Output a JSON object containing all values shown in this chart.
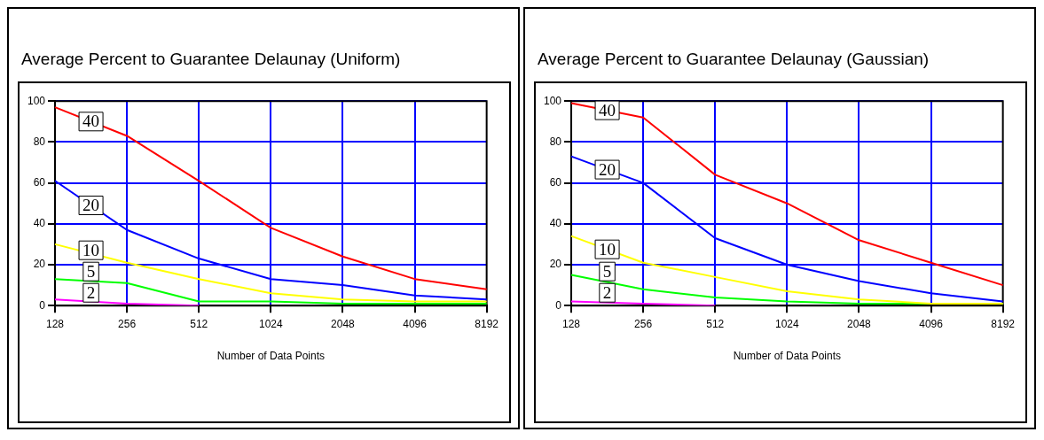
{
  "chart_data": [
    {
      "type": "line",
      "title": "Average Percent to Guarantee Delaunay (Uniform)",
      "xlabel": "Number of Data Points",
      "categories": [
        "128",
        "256",
        "512",
        "1024",
        "2048",
        "4096",
        "8192"
      ],
      "ylim": [
        0,
        100
      ],
      "yticks": [
        0,
        20,
        40,
        60,
        80,
        100
      ],
      "grid": true,
      "legend": false,
      "marker": "none",
      "line_style": "solid",
      "series": [
        {
          "name": "40",
          "color": "#ff0000",
          "values": [
            97,
            83,
            61,
            38,
            24,
            13,
            8
          ]
        },
        {
          "name": "20",
          "color": "#0000ff",
          "values": [
            61,
            37,
            23,
            13,
            10,
            5,
            3
          ]
        },
        {
          "name": "10",
          "color": "#ffff00",
          "values": [
            30,
            21,
            13,
            6,
            3,
            2,
            2
          ]
        },
        {
          "name": "5",
          "color": "#00ff00",
          "values": [
            13,
            11,
            2,
            2,
            1,
            1,
            1
          ]
        },
        {
          "name": "2",
          "color": "#ff00ff",
          "values": [
            3,
            1,
            0,
            null,
            null,
            null,
            null
          ]
        }
      ]
    },
    {
      "type": "line",
      "title": "Average Percent to Guarantee Delaunay (Gaussian)",
      "xlabel": "Number of Data Points",
      "categories": [
        "128",
        "256",
        "512",
        "1024",
        "2048",
        "4096",
        "8192"
      ],
      "ylim": [
        0,
        100
      ],
      "yticks": [
        0,
        20,
        40,
        60,
        80,
        100
      ],
      "grid": true,
      "legend": false,
      "marker": "none",
      "line_style": "solid",
      "series": [
        {
          "name": "40",
          "color": "#ff0000",
          "values": [
            99,
            92,
            64,
            50,
            32,
            21,
            10
          ]
        },
        {
          "name": "20",
          "color": "#0000ff",
          "values": [
            73,
            60,
            33,
            20,
            12,
            6,
            2
          ]
        },
        {
          "name": "10",
          "color": "#ffff00",
          "values": [
            34,
            21,
            14,
            7,
            3,
            1,
            1
          ]
        },
        {
          "name": "5",
          "color": "#00ff00",
          "values": [
            15,
            8,
            4,
            2,
            1,
            1,
            1
          ]
        },
        {
          "name": "2",
          "color": "#ff00ff",
          "values": [
            2,
            1,
            0,
            null,
            null,
            null,
            null
          ]
        }
      ]
    }
  ]
}
